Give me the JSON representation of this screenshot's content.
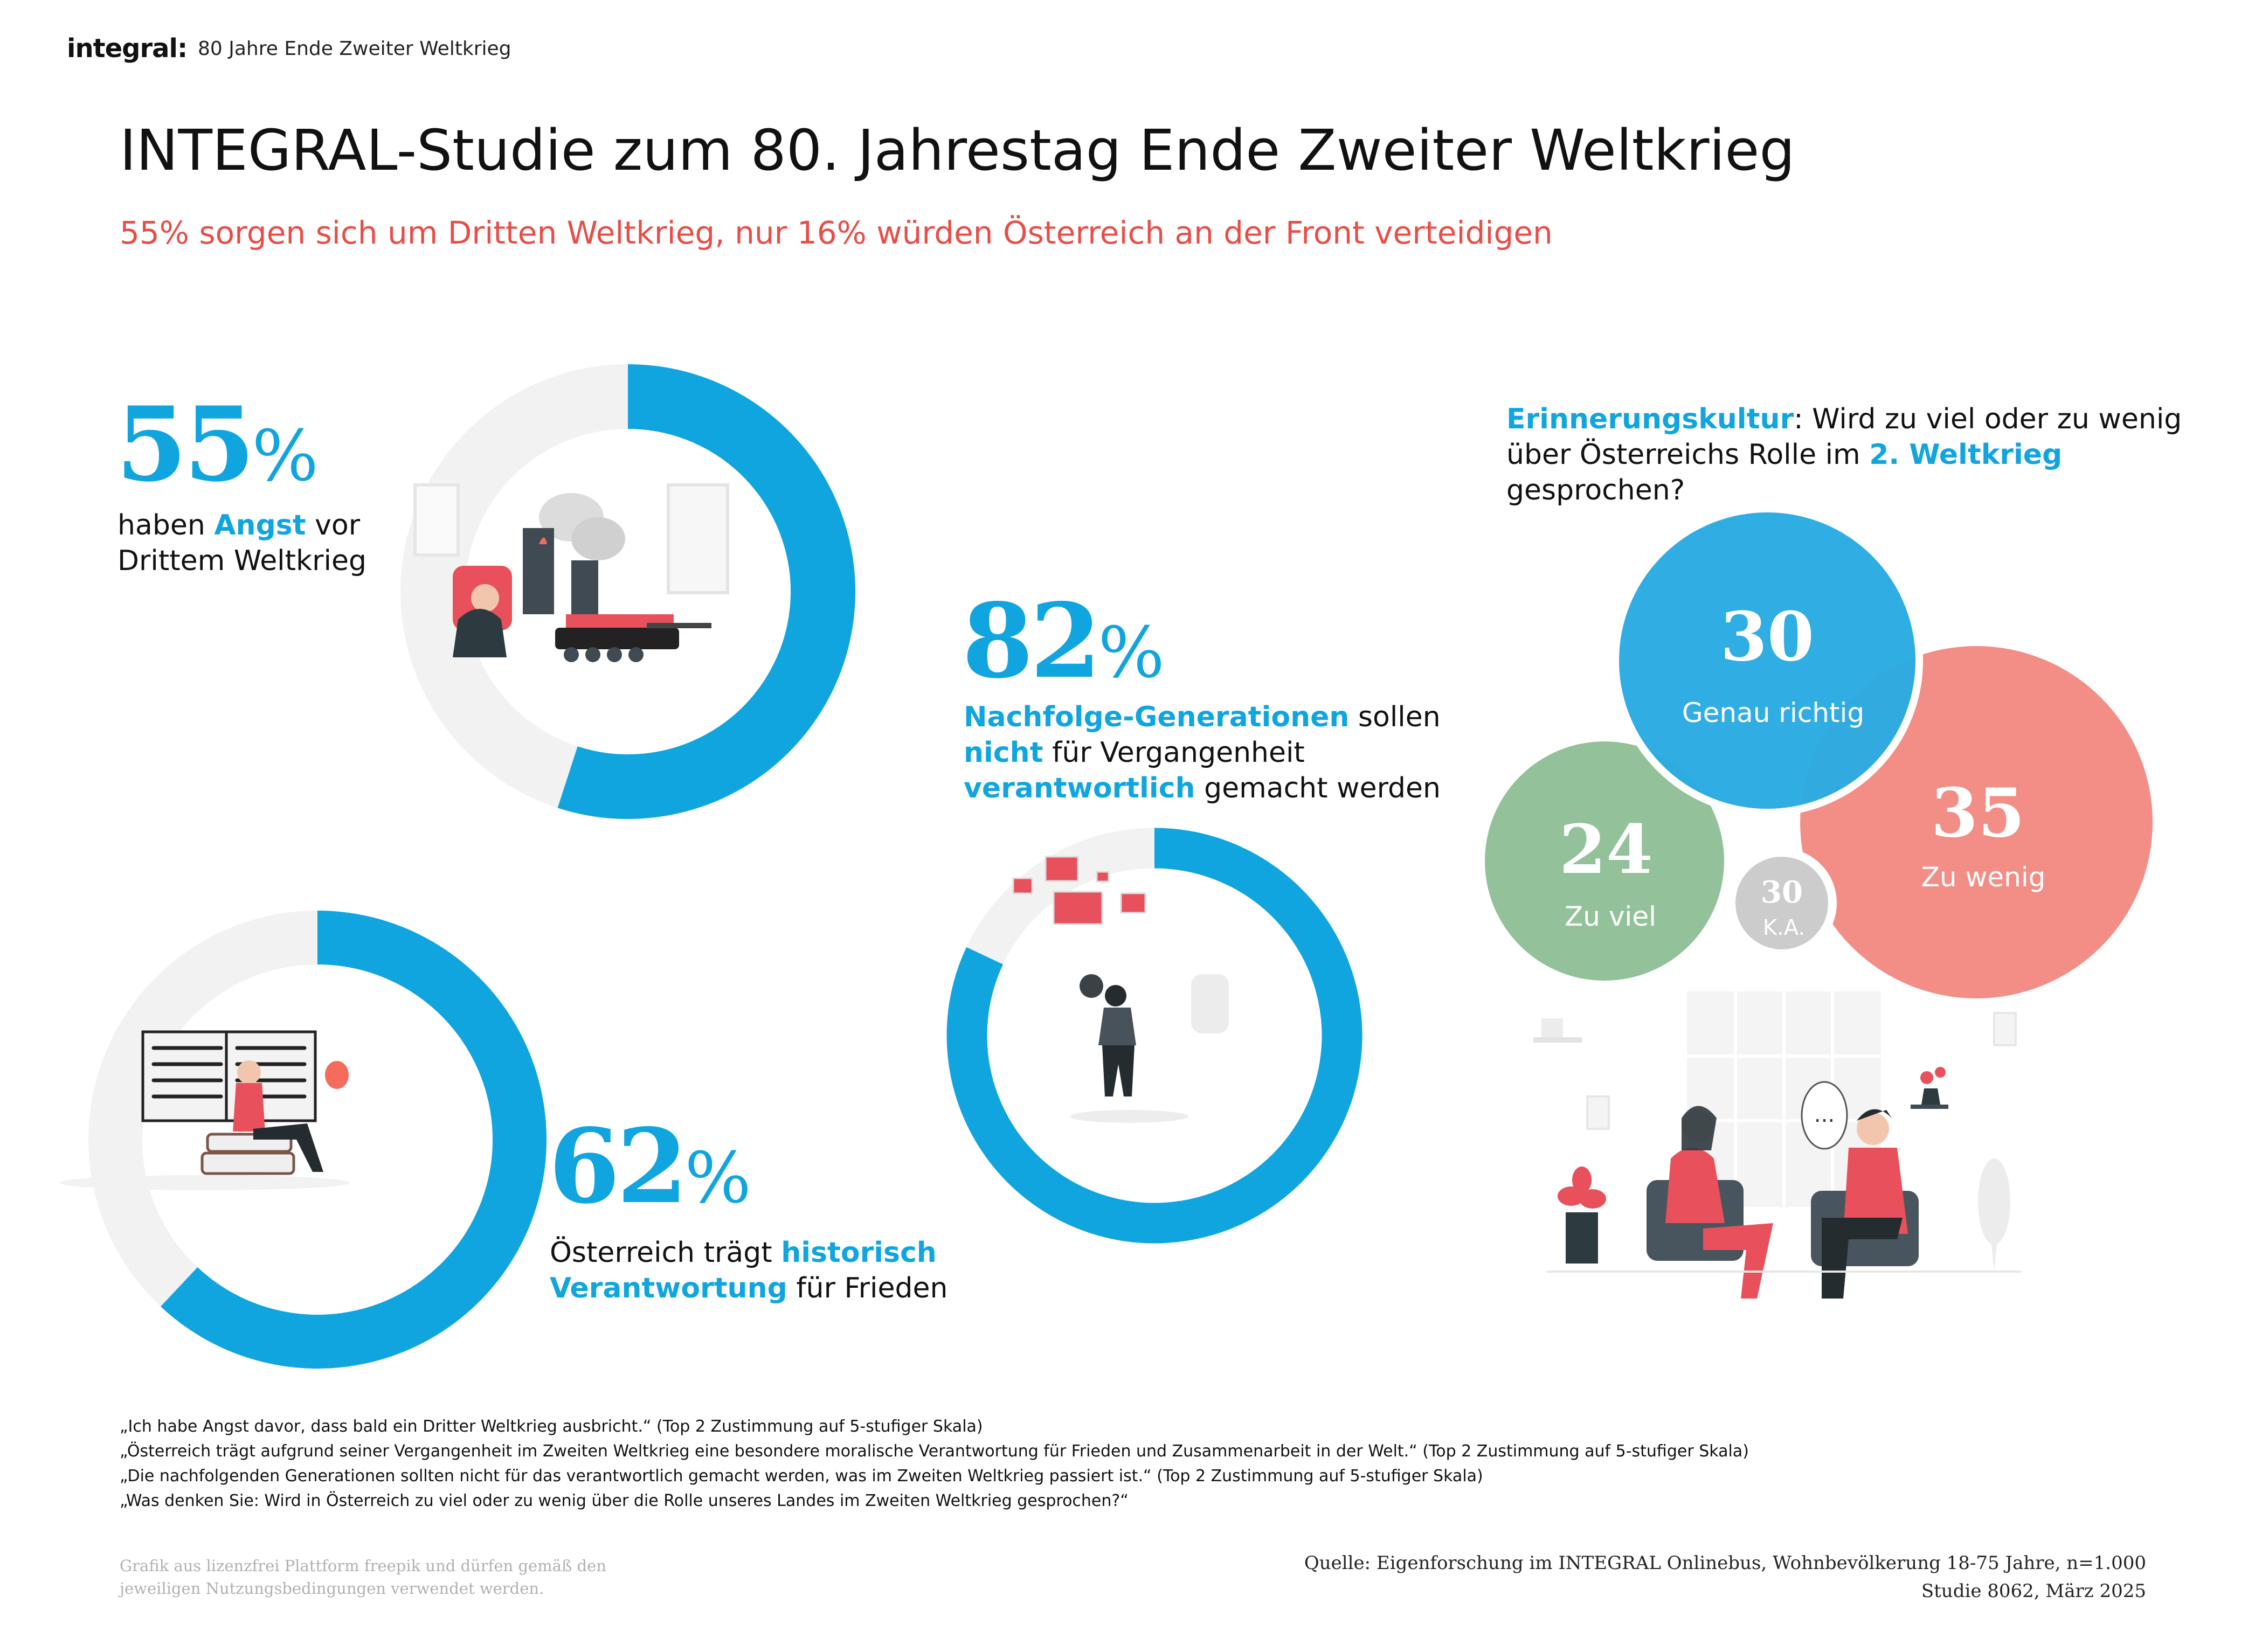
{
  "header": {
    "logo": "integral:",
    "subtitle": "80 Jahre Ende Zweiter Weltkrieg"
  },
  "title": "INTEGRAL-Studie zum 80. Jahrestag Ende Zweiter Weltkrieg",
  "subtitle": "55% sorgen sich um Dritten Weltkrieg, nur 16% würden Österreich an der Front verteidigen",
  "colors": {
    "accent_blue": "#10A5DF",
    "track_grey": "#F2F2F2",
    "headline_red": "#E84D47",
    "bubble_blue": "#29ABE2",
    "bubble_red": "#F28E86",
    "bubble_green": "#93C29A",
    "bubble_grey": "#CCCCCC"
  },
  "stats": [
    {
      "value": "55",
      "unit": "%",
      "text_parts": [
        "haben ",
        "Angst",
        " vor",
        "Drittem Weltkrieg"
      ],
      "illustration": "anxious-man-war-scene-illustration"
    },
    {
      "value": "82",
      "unit": "%",
      "text_parts": [
        "Nachfolge-Generationen",
        " sollen",
        "nicht",
        " für Vergangenheit",
        "verantwortlich",
        " gemacht werden"
      ],
      "illustration": "woman-looking-at-pictures-illustration"
    },
    {
      "value": "62",
      "unit": "%",
      "text_parts": [
        "Österreich trägt ",
        "historisch",
        "Verantwortung",
        " für Frieden"
      ],
      "illustration": "woman-reading-book-illustration"
    }
  ],
  "question": {
    "parts": [
      "Erinnerungskultur",
      ": Wird zu viel oder zu wenig",
      "über Österreichs Rolle im ",
      "2. Weltkrieg",
      "gesprochen?"
    ],
    "illustration": "two-people-talking-illustration",
    "speech_bubble": "..."
  },
  "chart_data": [
    {
      "type": "pie",
      "title": "haben Angst vor Drittem Weltkrieg",
      "categories": [
        "Zustimmung (Top 2)",
        "Rest"
      ],
      "values": [
        55,
        45
      ],
      "style": "donut"
    },
    {
      "type": "pie",
      "title": "Nachfolge-Generationen sollen nicht für Vergangenheit verantwortlich gemacht werden",
      "categories": [
        "Zustimmung (Top 2)",
        "Rest"
      ],
      "values": [
        82,
        18
      ],
      "style": "donut"
    },
    {
      "type": "pie",
      "title": "Österreich trägt historisch Verantwortung für Frieden",
      "categories": [
        "Zustimmung (Top 2)",
        "Rest"
      ],
      "values": [
        62,
        38
      ],
      "style": "donut"
    },
    {
      "type": "bubble",
      "title": "Erinnerungskultur: Wird zu viel oder zu wenig über Österreichs Rolle im 2. Weltkrieg gesprochen?",
      "categories": [
        "Genau richtig",
        "Zu wenig",
        "Zu viel",
        "K.A."
      ],
      "values": [
        30,
        35,
        24,
        30
      ],
      "value_labels": [
        "30",
        "35",
        "24",
        "30"
      ],
      "unit": "%"
    }
  ],
  "notes": [
    "„Ich habe Angst davor, dass bald ein Dritter Weltkrieg ausbricht.“ (Top 2 Zustimmung auf 5-stufiger Skala)",
    "„Österreich trägt aufgrund seiner Vergangenheit im Zweiten Weltkrieg eine besondere moralische Verantwortung für Frieden und Zusammenarbeit in der Welt.“ (Top 2 Zustimmung auf 5-stufiger Skala)",
    "„Die nachfolgenden Generationen sollten nicht für das verantwortlich gemacht werden, was im Zweiten Weltkrieg passiert ist.“ (Top 2 Zustimmung auf 5-stufiger Skala)",
    "„Was denken Sie: Wird in Österreich zu viel oder zu wenig über die Rolle unseres Landes im Zweiten Weltkrieg gesprochen?“"
  ],
  "credit": [
    "Grafik aus lizenzfrei Plattform freepik und dürfen gemäß den",
    "jeweiligen Nutzungsbedingungen verwendet werden."
  ],
  "source": [
    "Quelle: Eigenforschung im INTEGRAL Onlinebus, Wohnbevölkerung 18-75 Jahre, n=1.000",
    "Studie 8062, März 2025"
  ]
}
